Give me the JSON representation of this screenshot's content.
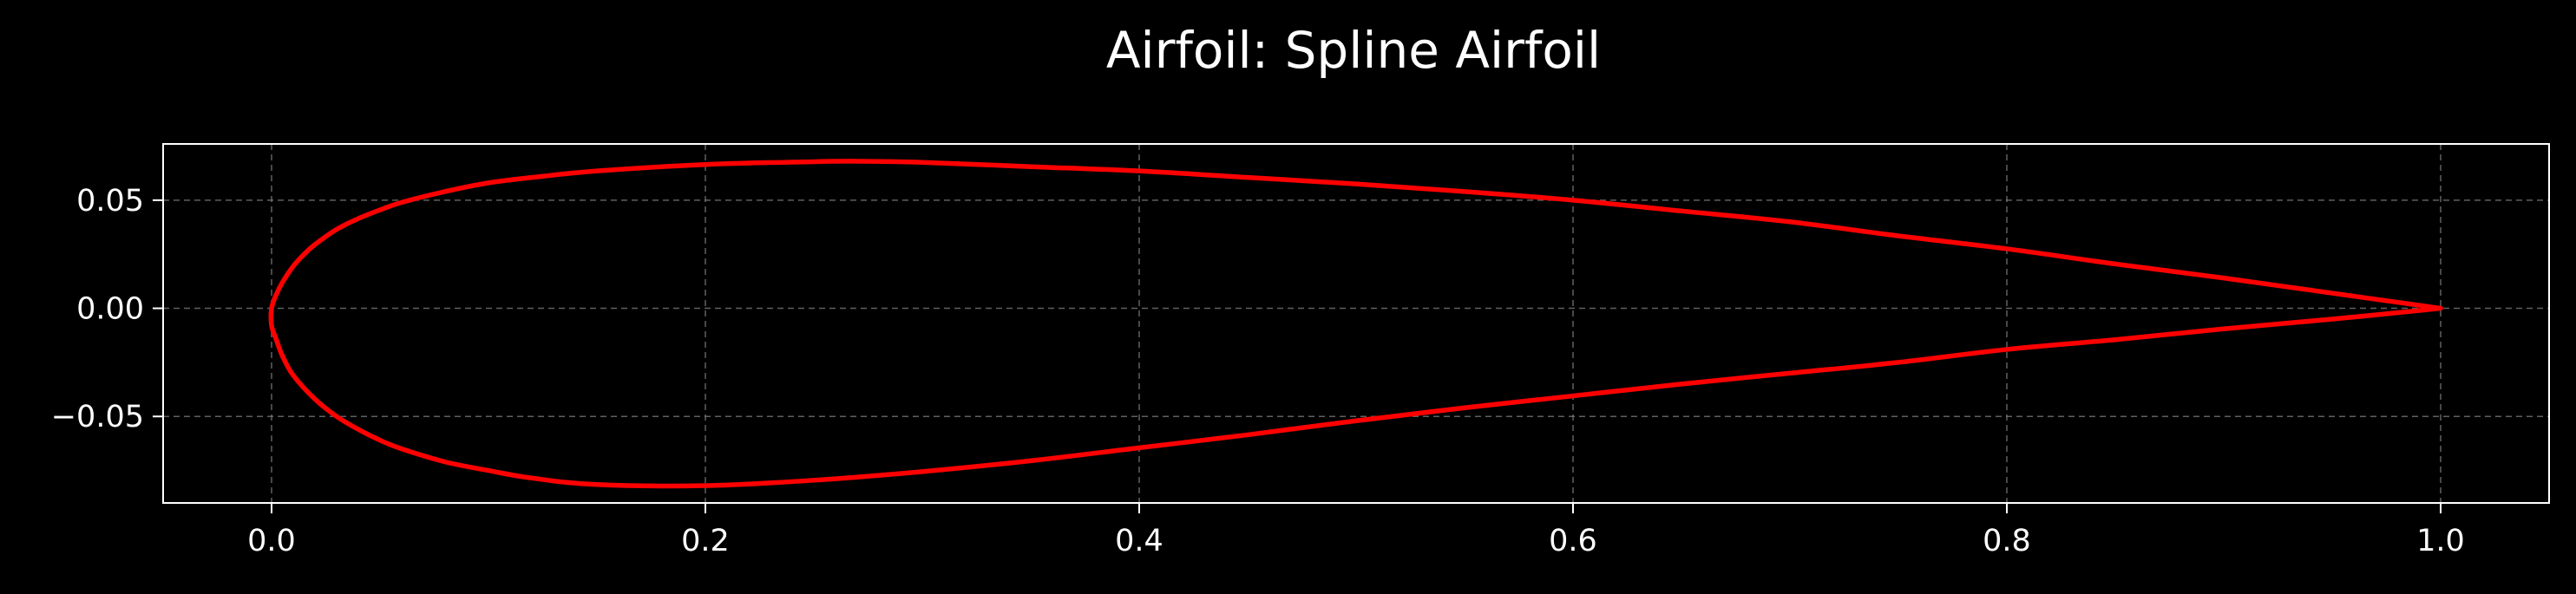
{
  "chart_data": {
    "type": "line",
    "title": "Airfoil: Spline Airfoil",
    "xlabel": "",
    "ylabel": "",
    "xlim": [
      -0.05,
      1.05
    ],
    "ylim": [
      -0.09,
      0.076
    ],
    "x_ticks": [
      {
        "value": 0.0,
        "label": "0.0"
      },
      {
        "value": 0.2,
        "label": "0.2"
      },
      {
        "value": 0.4,
        "label": "0.4"
      },
      {
        "value": 0.6,
        "label": "0.6"
      },
      {
        "value": 0.8,
        "label": "0.8"
      },
      {
        "value": 1.0,
        "label": "1.0"
      }
    ],
    "y_ticks": [
      {
        "value": -0.05,
        "label": "−0.05"
      },
      {
        "value": 0.0,
        "label": "0.00"
      },
      {
        "value": 0.05,
        "label": "0.05"
      }
    ],
    "grid": true,
    "background_color": "#000000",
    "text_color": "#ffffff",
    "series": [
      {
        "color": "#ff0000",
        "x": [
          1.0,
          0.95,
          0.9,
          0.85,
          0.8,
          0.75,
          0.7,
          0.65,
          0.6,
          0.55,
          0.5,
          0.45,
          0.4,
          0.35,
          0.3,
          0.27,
          0.25,
          0.2,
          0.15,
          0.12,
          0.1,
          0.08,
          0.06,
          0.05,
          0.04,
          0.03,
          0.02,
          0.015,
          0.01,
          0.005,
          0.002,
          0.0,
          0.0,
          0.002,
          0.005,
          0.01,
          0.02,
          0.03,
          0.04,
          0.05,
          0.06,
          0.08,
          0.1,
          0.12,
          0.15,
          0.2,
          0.25,
          0.3,
          0.35,
          0.4,
          0.45,
          0.5,
          0.55,
          0.6,
          0.65,
          0.7,
          0.75,
          0.8,
          0.85,
          0.9,
          0.95,
          1.0
        ],
        "y": [
          0.0,
          0.007,
          0.014,
          0.0205,
          0.0275,
          0.0335,
          0.04,
          0.045,
          0.05,
          0.054,
          0.0575,
          0.0605,
          0.0635,
          0.0655,
          0.0675,
          0.068,
          0.0678,
          0.0665,
          0.0635,
          0.0605,
          0.058,
          0.054,
          0.049,
          0.0455,
          0.0415,
          0.0365,
          0.0295,
          0.025,
          0.0195,
          0.012,
          0.006,
          0.0,
          -0.008,
          -0.014,
          -0.022,
          -0.031,
          -0.042,
          -0.05,
          -0.056,
          -0.061,
          -0.065,
          -0.071,
          -0.075,
          -0.0785,
          -0.0815,
          -0.082,
          -0.0795,
          -0.0755,
          -0.0705,
          -0.0645,
          -0.0585,
          -0.052,
          -0.046,
          -0.0405,
          -0.035,
          -0.03,
          -0.025,
          -0.019,
          -0.0145,
          -0.0095,
          -0.005,
          0.0
        ]
      }
    ]
  }
}
